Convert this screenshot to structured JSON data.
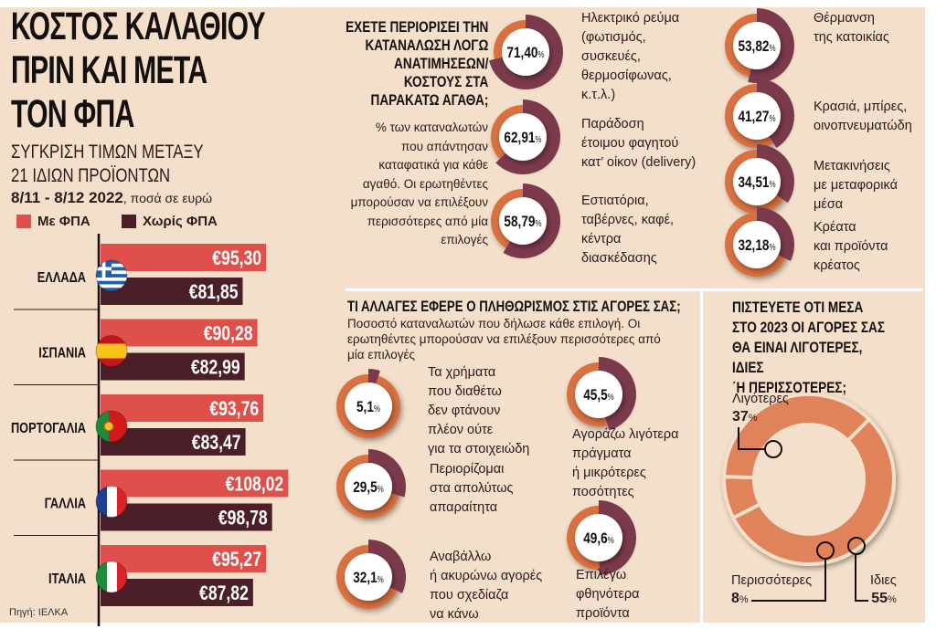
{
  "header": {
    "title_lines": [
      "ΚΟΣΤΟΣ ΚΑΛΑΘΙΟΥ",
      "ΠΡΙΝ ΚΑΙ ΜΕΤΑ",
      "ΤΟΝ ΦΠΑ"
    ],
    "subtitle_lines": [
      "ΣΥΓΚΡΙΣΗ ΤΙΜΩΝ ΜΕΤΑΞΥ",
      "21 ΙΔΙΩΝ ΠΡΟΪΟΝΤΩΝ"
    ],
    "date_range": "8/11 - 8/12 2022",
    "date_note": ", ποσά σε ευρώ",
    "source": "Πηγή: ΙΕΛΚΑ"
  },
  "colors": {
    "with_vat": "#e0504a",
    "without_vat": "#4a1f27",
    "ring_orange": "#d8703f",
    "ring_purple": "#7b3a4b",
    "background": "#f3dfca"
  },
  "chart_data": [
    {
      "type": "bar",
      "orientation": "horizontal",
      "legend": [
        "Με ΦΠΑ",
        "Χωρίς ΦΠΑ"
      ],
      "legend_placement": "top",
      "categories": [
        "ΕΛΛΑΔΑ",
        "ΙΣΠΑΝΙΑ",
        "ΠΟΡΤΟΓΑΛΙΑ",
        "ΓΑΛΛΙΑ",
        "ΙΤΑΛΙΑ"
      ],
      "flags": [
        "greece-flag-icon",
        "spain-flag-icon",
        "portugal-flag-icon",
        "france-flag-icon",
        "italy-flag-icon"
      ],
      "series": [
        {
          "name": "Με ΦΠΑ",
          "values": [
            95.3,
            90.28,
            93.76,
            108.02,
            95.27
          ],
          "labels": [
            "€95,30",
            "€90,28",
            "€93,76",
            "€108,02",
            "€95,27"
          ]
        },
        {
          "name": "Χωρίς ΦΠΑ",
          "values": [
            81.85,
            82.99,
            83.47,
            98.78,
            87.82
          ],
          "labels": [
            "€81,85",
            "€82,99",
            "€83,47",
            "€98,78",
            "€87,82"
          ]
        }
      ]
    },
    {
      "type": "donut",
      "title": "ΕΧΕΤΕ ΠΕΡΙΟΡΙΣΕΙ ΤΗΝ\nΚΑΤΑΝΑΛΩΣΗ ΛΟΓΩ\nΑΝΑΤΙΜΗΣΕΩΝ/\nΚΟΣΤΟΥΣ ΣΤΑ\nΠΑΡΑΚΑΤΩ ΑΓΑΘΑ;",
      "description": "% των καταναλωτών\nπου απάντησαν\nκαταφατικά για κάθε\nαγαθό. Οι ερωτηθέντες\nμπορούσαν να επιλέξουν\nπερισσότερες από μία\nεπιλογές",
      "items": [
        {
          "value": 71.4,
          "display": "71,40",
          "label": "Ηλεκτρικό ρεύμα\n(φωτισμός,\nσυσκευές,\nθερμοσίφωνας,\nκ.τ.λ.)"
        },
        {
          "value": 62.91,
          "display": "62,91",
          "label": "Παράδοση\nέτοιμου φαγητού\nκατ’ οίκον (delivery)"
        },
        {
          "value": 58.79,
          "display": "58,79",
          "label": "Εστιατόρια,\nταβέρνες, καφέ,\nκέντρα\nδιασκέδασης"
        },
        {
          "value": 53.82,
          "display": "53,82",
          "label": "Θέρμανση\nτης κατοικίας"
        },
        {
          "value": 41.27,
          "display": "41,27",
          "label": "Κρασιά, μπίρες,\nοινοπνευματώδη"
        },
        {
          "value": 34.51,
          "display": "34,51",
          "label": "Μετακινήσεις\nμε μεταφορικά\nμέσα"
        },
        {
          "value": 32.18,
          "display": "32,18",
          "label": "Κρέατα\nκαι προϊόντα\nκρέατος"
        }
      ]
    },
    {
      "type": "donut",
      "title": "ΤΙ ΑΛΛΑΓΕΣ ΕΦΕΡΕ Ο ΠΛΗΘΩΡΙΣΜΟΣ ΣΤΙΣ ΑΓΟΡΕΣ ΣΑΣ;",
      "description": "Ποσοστό καταναλωτών που δήλωσε κάθε επιλογή. Οι\nερωτηθέντες μπορούσαν να επιλέξουν περισσότερες από\nμία επιλογές",
      "items": [
        {
          "value": 5.1,
          "display": "5,1",
          "label": "Τα χρήματα\nπου διαθέτω\nδεν φτάνουν\nπλέον ούτε\nγια τα στοιχειώδη"
        },
        {
          "value": 29.5,
          "display": "29,5",
          "label": "Περιορίζομαι\nστα απολύτως\nαπαραίτητα"
        },
        {
          "value": 32.1,
          "display": "32,1",
          "label": "Αναβάλλω\nή ακυρώνω αγορές\nπου σχεδίαζα\nνα κάνω"
        },
        {
          "value": 45.5,
          "display": "45,5",
          "label": "Αγοράζω λιγότερα\nπράγματα\nή μικρότερες\nποσότητες"
        },
        {
          "value": 49.6,
          "display": "49,6",
          "label": "Επιλέγω\nφθηνότερα\nπροϊόντα"
        }
      ]
    },
    {
      "type": "pie",
      "title": "ΠΙΣΤΕΥΕΤΕ ΟΤΙ ΜΕΣΑ\nΣΤΟ 2023 ΟΙ ΑΓΟΡΕΣ ΣΑΣ\nΘΑ ΕΙΝΑΙ ΛΙΓΟΤΕΡΕΣ, ΙΔΙΕΣ\n΄Η ΠΕΡΙΣΣΟΤΕΡΕΣ;",
      "slices": [
        {
          "name": "Λιγότερες",
          "value": 37,
          "display": "37"
        },
        {
          "name": "Περισσότερες",
          "value": 8,
          "display": "8"
        },
        {
          "name": "Ιδιες",
          "value": 55,
          "display": "55"
        }
      ]
    }
  ]
}
